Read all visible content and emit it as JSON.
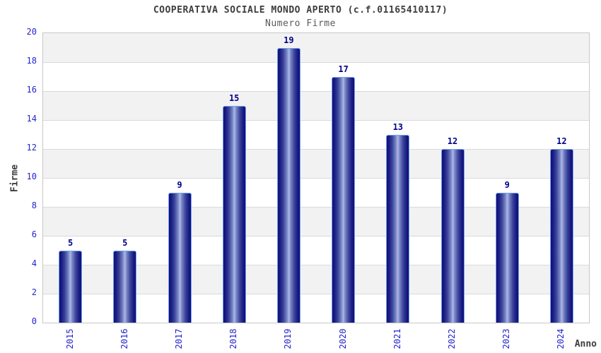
{
  "chart_data": {
    "type": "bar",
    "title": "COOPERATIVA SOCIALE MONDO APERTO (c.f.01165410117)",
    "subtitle": "Numero Firme",
    "xlabel": "Anno",
    "ylabel": "Firme",
    "categories": [
      "2015",
      "2016",
      "2017",
      "2018",
      "2019",
      "2020",
      "2021",
      "2022",
      "2023",
      "2024"
    ],
    "values": [
      5,
      5,
      9,
      15,
      19,
      17,
      13,
      12,
      9,
      12
    ],
    "ylim": [
      0,
      20
    ],
    "yticks": [
      0,
      2,
      4,
      6,
      8,
      10,
      12,
      14,
      16,
      18,
      20
    ],
    "grid": "horizontal-bands-alternating",
    "legend": "none",
    "colors": {
      "bar_edge": "#101074",
      "bar_center": "#aeb8e6",
      "bar_border": "#6fa4ef",
      "value_label": "#00008b",
      "tick_label": "#2424cc",
      "band_gray": "#f2f2f2",
      "band_white": "#ffffff",
      "gridline": "#dadada",
      "plot_border": "#c8c8c8",
      "title_text": "#3d3d3d",
      "subtitle_text": "#5a5a5a"
    }
  }
}
